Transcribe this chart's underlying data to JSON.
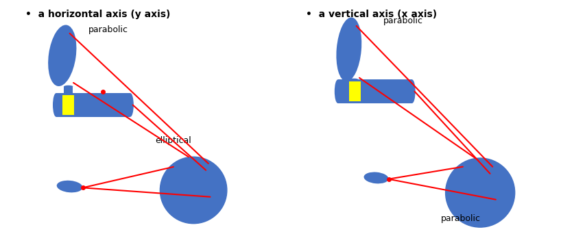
{
  "bg_color": "#ffffff",
  "mirror_blue": "#4472C4",
  "yellow": "#FFFF00",
  "red": "#FF0000",
  "text_color": "#000000",
  "left_title": "a horizontal axis (y axis)",
  "right_title": "a vertical axis (x axis)",
  "label_parabolic_left": "parabolic",
  "label_elliptical": "elliptical",
  "label_parabolic_right_top": "parabolic",
  "label_parabolic_right_bot": "parabolic",
  "bullet": "•"
}
